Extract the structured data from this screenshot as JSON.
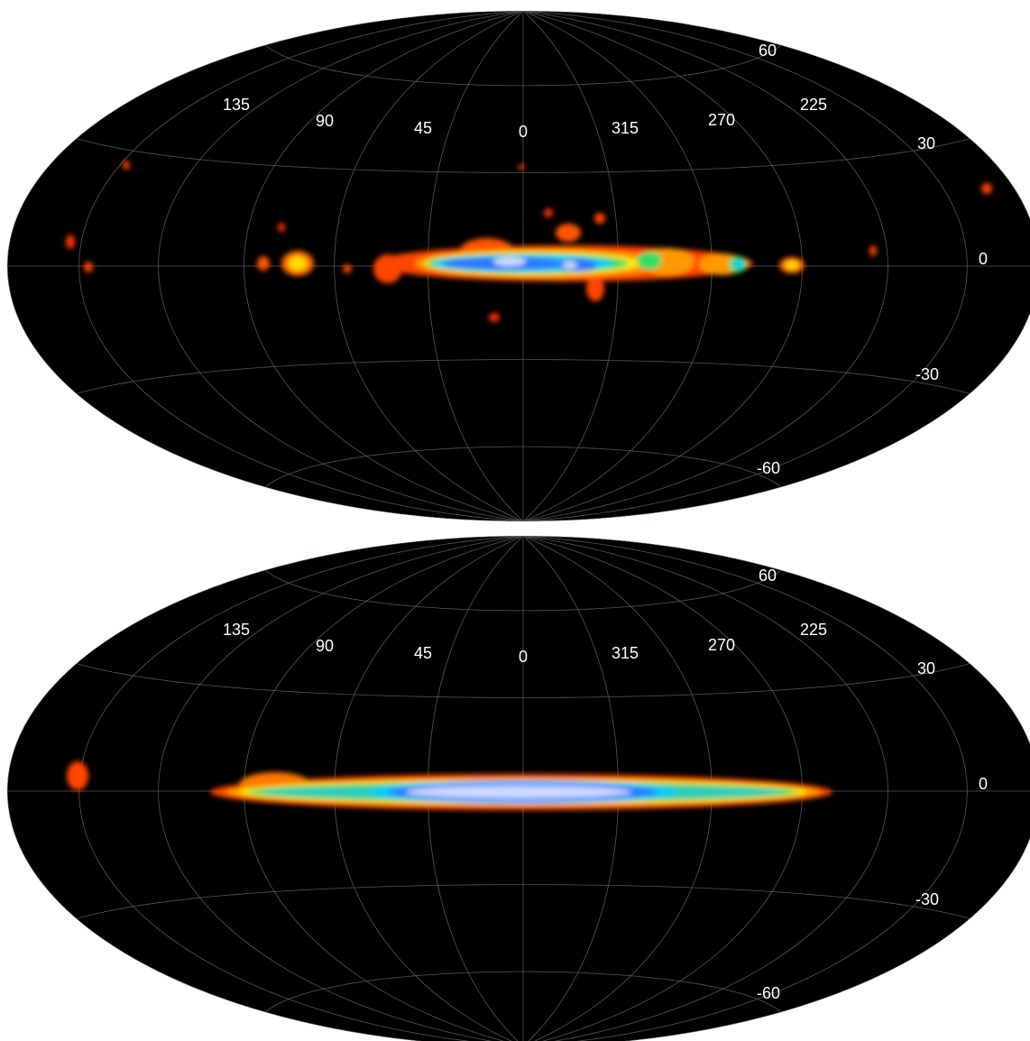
{
  "maps": [
    {
      "longitude_labels": [
        "135",
        "90",
        "45",
        "0",
        "315",
        "270",
        "225"
      ],
      "latitude_labels": [
        "60",
        "30",
        "0",
        "-30",
        "-60"
      ]
    },
    {
      "longitude_labels": [
        "135",
        "90",
        "45",
        "0",
        "315",
        "270",
        "225"
      ],
      "latitude_labels": [
        "60",
        "30",
        "0",
        "-30",
        "-60"
      ]
    }
  ]
}
